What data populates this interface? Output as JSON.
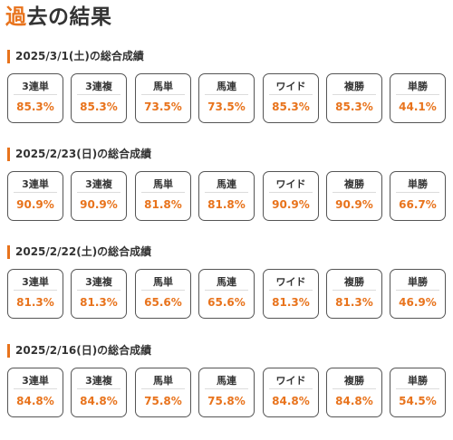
{
  "page": {
    "title_accent": "過",
    "title_rest": "去の結果"
  },
  "colors": {
    "accent": "#e8731c",
    "text": "#333333",
    "border": "#555555"
  },
  "sections": [
    {
      "heading": "2025/3/1(土)の総合成績",
      "stats": [
        {
          "label": "3連単",
          "value": "85.3%"
        },
        {
          "label": "3連複",
          "value": "85.3%"
        },
        {
          "label": "馬単",
          "value": "73.5%"
        },
        {
          "label": "馬連",
          "value": "73.5%"
        },
        {
          "label": "ワイド",
          "value": "85.3%"
        },
        {
          "label": "複勝",
          "value": "85.3%"
        },
        {
          "label": "単勝",
          "value": "44.1%"
        }
      ]
    },
    {
      "heading": "2025/2/23(日)の総合成績",
      "stats": [
        {
          "label": "3連単",
          "value": "90.9%"
        },
        {
          "label": "3連複",
          "value": "90.9%"
        },
        {
          "label": "馬単",
          "value": "81.8%"
        },
        {
          "label": "馬連",
          "value": "81.8%"
        },
        {
          "label": "ワイド",
          "value": "90.9%"
        },
        {
          "label": "複勝",
          "value": "90.9%"
        },
        {
          "label": "単勝",
          "value": "66.7%"
        }
      ]
    },
    {
      "heading": "2025/2/22(土)の総合成績",
      "stats": [
        {
          "label": "3連単",
          "value": "81.3%"
        },
        {
          "label": "3連複",
          "value": "81.3%"
        },
        {
          "label": "馬単",
          "value": "65.6%"
        },
        {
          "label": "馬連",
          "value": "65.6%"
        },
        {
          "label": "ワイド",
          "value": "81.3%"
        },
        {
          "label": "複勝",
          "value": "81.3%"
        },
        {
          "label": "単勝",
          "value": "46.9%"
        }
      ]
    },
    {
      "heading": "2025/2/16(日)の総合成績",
      "stats": [
        {
          "label": "3連単",
          "value": "84.8%"
        },
        {
          "label": "3連複",
          "value": "84.8%"
        },
        {
          "label": "馬単",
          "value": "75.8%"
        },
        {
          "label": "馬連",
          "value": "75.8%"
        },
        {
          "label": "ワイド",
          "value": "84.8%"
        },
        {
          "label": "複勝",
          "value": "84.8%"
        },
        {
          "label": "単勝",
          "value": "54.5%"
        }
      ]
    }
  ]
}
